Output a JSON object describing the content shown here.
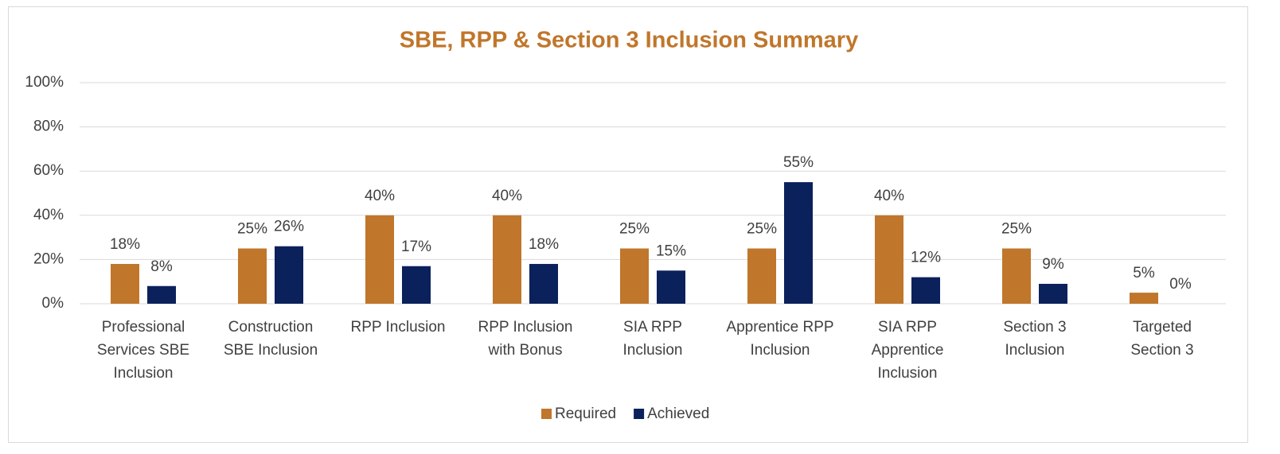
{
  "chart_data": {
    "type": "bar",
    "title": "SBE, RPP & Section 3 Inclusion Summary",
    "categories": [
      "Professional Services SBE Inclusion",
      "Construction SBE Inclusion",
      "RPP Inclusion",
      "RPP Inclusion with Bonus",
      "SIA RPP Inclusion",
      "Apprentice RPP Inclusion",
      "SIA RPP Apprentice Inclusion",
      "Section 3 Inclusion",
      "Targeted Section 3"
    ],
    "series": [
      {
        "name": "Required",
        "color": "#c0762b",
        "values": [
          18,
          25,
          40,
          40,
          25,
          25,
          40,
          25,
          5
        ],
        "value_labels": [
          "18%",
          "25%",
          "40%",
          "40%",
          "25%",
          "25%",
          "40%",
          "25%",
          "5%"
        ]
      },
      {
        "name": "Achieved",
        "color": "#0b215c",
        "values": [
          8,
          26,
          17,
          18,
          15,
          55,
          12,
          9,
          0
        ],
        "value_labels": [
          "8%",
          "26%",
          "17%",
          "18%",
          "15%",
          "55%",
          "12%",
          "9%",
          "0%"
        ]
      }
    ],
    "ylim": [
      0,
      100
    ],
    "yticks": [
      {
        "value": 0,
        "label": "0%"
      },
      {
        "value": 20,
        "label": "20%"
      },
      {
        "value": 40,
        "label": "40%"
      },
      {
        "value": 60,
        "label": "60%"
      },
      {
        "value": 80,
        "label": "80%"
      },
      {
        "value": 100,
        "label": "100%"
      }
    ],
    "grid": true,
    "legend": "bottom"
  }
}
